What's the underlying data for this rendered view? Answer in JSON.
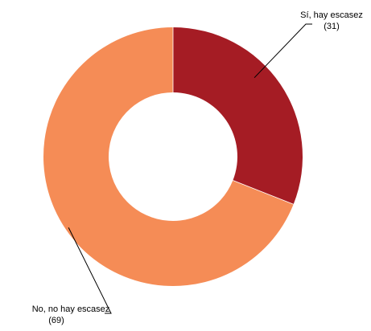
{
  "chart_data": {
    "type": "pie",
    "donut": true,
    "start_angle_deg": 0,
    "direction": "clockwise",
    "slices": [
      {
        "name": "Sí, hay escasez",
        "value": 31,
        "value_label": "(31)",
        "color": "#A51C24"
      },
      {
        "name": "No, no hay escasez",
        "value": 69,
        "value_label": "(69)",
        "color": "#F58C56"
      }
    ],
    "legend": "none",
    "title": ""
  }
}
